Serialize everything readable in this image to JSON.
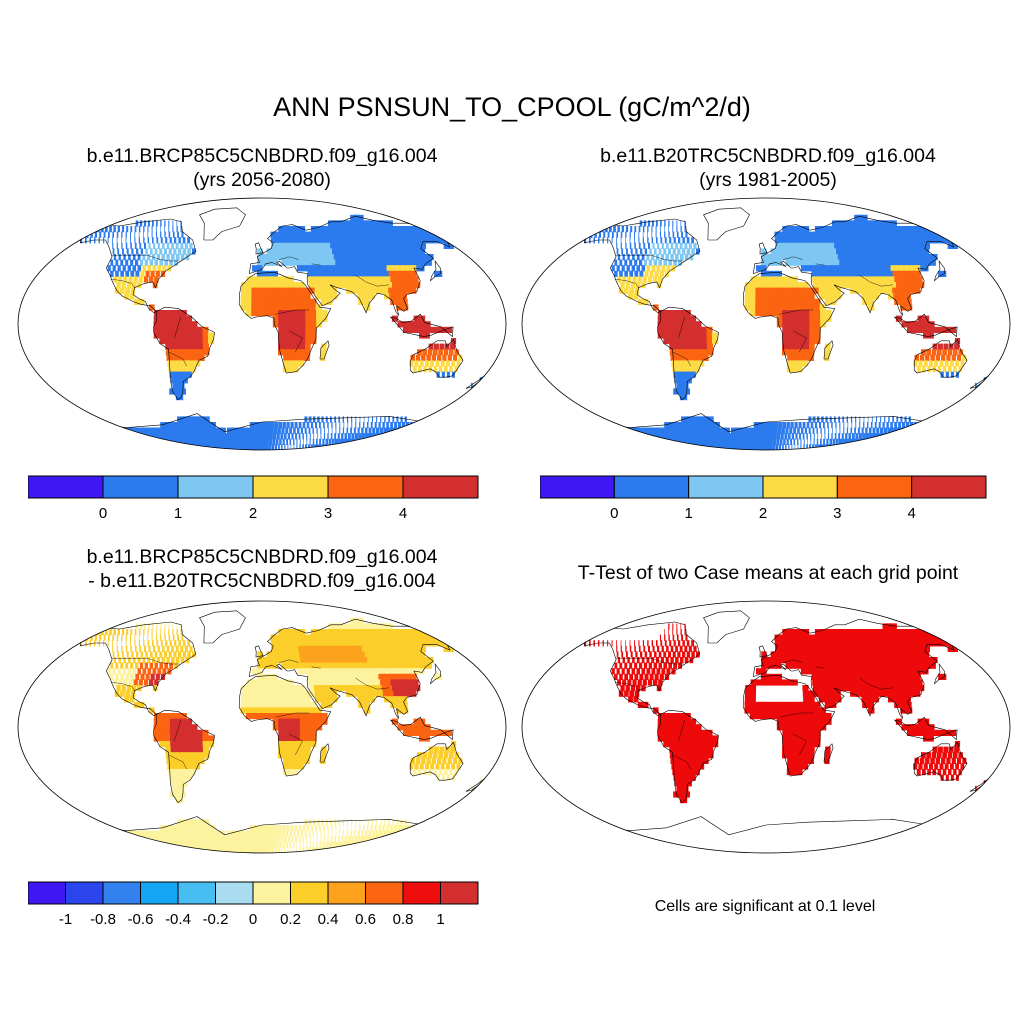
{
  "title": "ANN PSNSUN_TO_CPOOL (gC/m^2/d)",
  "panels": [
    {
      "line1": "b.e11.BRCP85C5CNBDRD.f09_g16.004",
      "line2": "(yrs 2056-2080)"
    },
    {
      "line1": "b.e11.B20TRC5CNBDRD.f09_g16.004",
      "line2": "(yrs 1981-2005)"
    },
    {
      "line1": "b.e11.BRCP85C5CNBDRD.f09_g16.004",
      "line2": "- b.e11.B20TRC5CNBDRD.f09_g16.004"
    },
    {
      "line1": "T-Test of two Case means at each grid point"
    }
  ],
  "significance_note": "Cells are significant at 0.1 level",
  "colorbars": {
    "absolute": {
      "colors": [
        "#3f16f4",
        "#2b7bef",
        "#7dc7f2",
        "#fcdb45",
        "#fb6410",
        "#d42f2f"
      ],
      "tick_labels": [
        "0",
        "1",
        "2",
        "3",
        "4"
      ]
    },
    "difference": {
      "colors": [
        "#3f16f4",
        "#2a45ec",
        "#3381ef",
        "#14a6f5",
        "#47bdf2",
        "#a9dcef",
        "#fdf39e",
        "#fcce2a",
        "#fca21d",
        "#fb6410",
        "#ed0d0d",
        "#d42f2f"
      ],
      "tick_labels": [
        "-1",
        "-0.8",
        "-0.6",
        "-0.4",
        "-0.2",
        "0",
        "0.2",
        "0.4",
        "0.6",
        "0.8",
        "1"
      ]
    }
  },
  "map_colors": {
    "ocean": "#ffffff",
    "outline": "#000000",
    "significant": "#ee0a0a"
  }
}
